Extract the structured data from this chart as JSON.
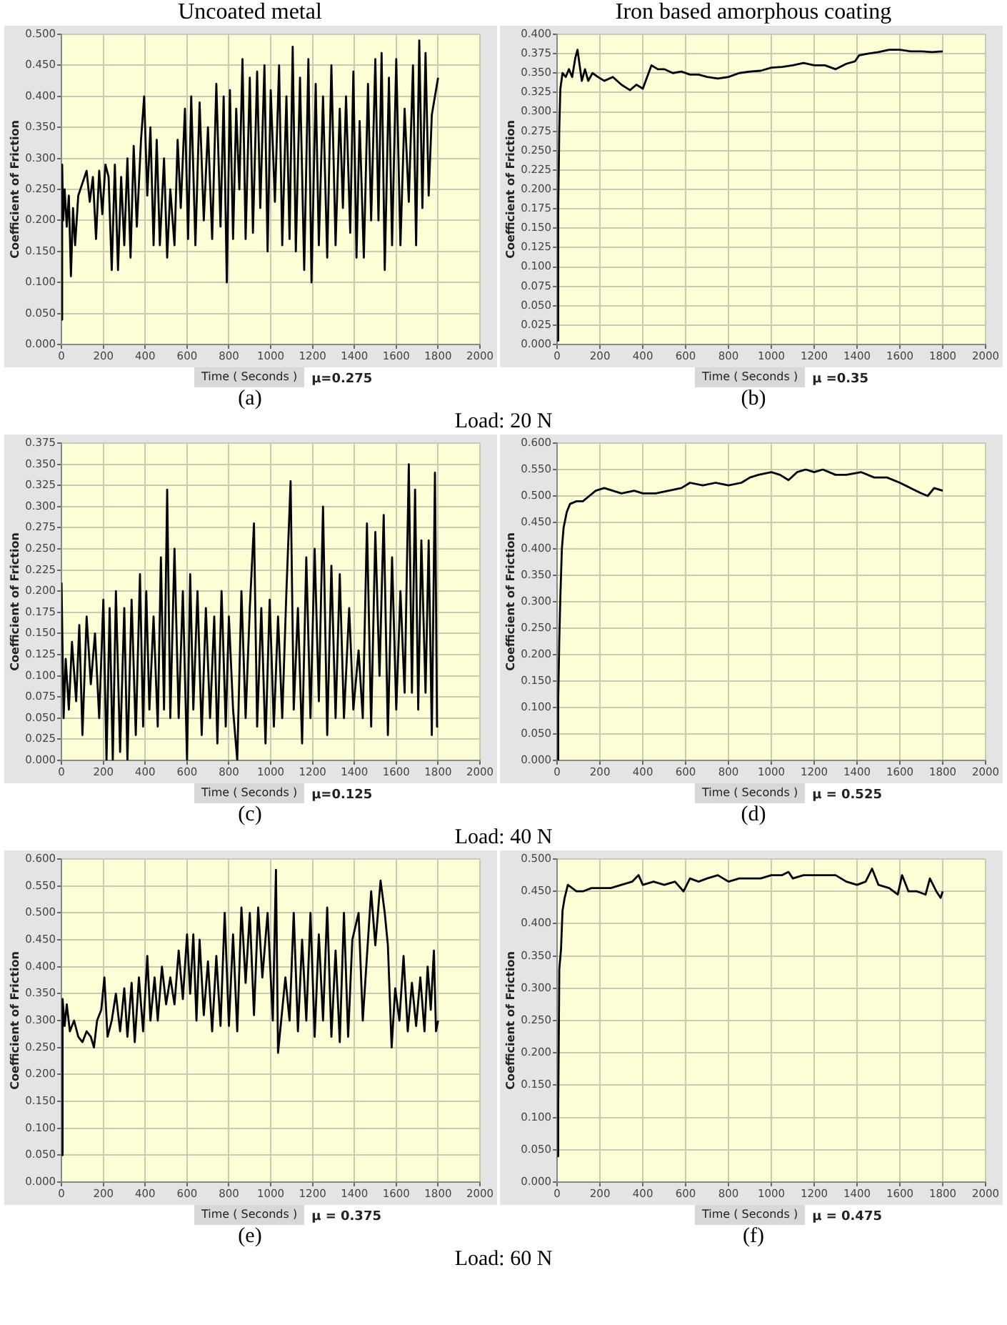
{
  "chart_data": [
    {
      "type": "line",
      "title": "Uncoated metal",
      "xlabel": "Time ( Seconds )",
      "ylabel": "Coefficient of Friction",
      "annotations": [
        "μ=0.275",
        "(a)",
        "Load: 20 N"
      ],
      "xlim": [
        0,
        2000
      ],
      "xticks": [
        0,
        200,
        400,
        600,
        800,
        1000,
        1200,
        1400,
        1600,
        1800,
        2000
      ],
      "ylim": [
        0,
        0.5
      ],
      "yticks": [
        {
          "value": 0,
          "label": "0.000"
        },
        {
          "value": 0.05,
          "label": "0.050"
        },
        {
          "value": 0.1,
          "label": "0.100"
        },
        {
          "value": 0.15,
          "label": "0.150"
        },
        {
          "value": 0.2,
          "label": "0.200"
        },
        {
          "value": 0.25,
          "label": "0.250"
        },
        {
          "value": 0.3,
          "label": "0.300"
        },
        {
          "value": 0.35,
          "label": "0.350"
        },
        {
          "value": 0.4,
          "label": "0.400"
        },
        {
          "value": 0.45,
          "label": "0.450"
        },
        {
          "value": 0.5,
          "label": "0.500"
        }
      ],
      "grid": true,
      "legend": false,
      "marker": "none",
      "line_style": "solid",
      "series": [
        {
          "color": "#000000",
          "x": [
            0,
            3,
            8,
            15,
            25,
            35,
            45,
            55,
            65,
            80,
            100,
            120,
            135,
            150,
            165,
            180,
            195,
            210,
            225,
            240,
            255,
            270,
            285,
            300,
            315,
            330,
            345,
            360,
            380,
            395,
            410,
            425,
            440,
            455,
            470,
            490,
            505,
            520,
            540,
            555,
            570,
            590,
            605,
            620,
            640,
            660,
            680,
            700,
            720,
            740,
            760,
            775,
            790,
            805,
            820,
            835,
            850,
            865,
            880,
            900,
            915,
            935,
            950,
            970,
            985,
            1000,
            1020,
            1040,
            1055,
            1075,
            1090,
            1105,
            1120,
            1140,
            1160,
            1180,
            1195,
            1215,
            1230,
            1250,
            1270,
            1290,
            1310,
            1330,
            1345,
            1360,
            1380,
            1395,
            1410,
            1425,
            1445,
            1465,
            1480,
            1500,
            1515,
            1530,
            1545,
            1565,
            1580,
            1600,
            1620,
            1640,
            1660,
            1680,
            1695,
            1710,
            1725,
            1740,
            1755,
            1770,
            1785,
            1800
          ],
          "values": [
            0.04,
            0.29,
            0.2,
            0.25,
            0.19,
            0.24,
            0.11,
            0.22,
            0.16,
            0.24,
            0.26,
            0.28,
            0.23,
            0.27,
            0.17,
            0.28,
            0.21,
            0.29,
            0.27,
            0.12,
            0.29,
            0.12,
            0.27,
            0.16,
            0.3,
            0.14,
            0.32,
            0.19,
            0.33,
            0.4,
            0.24,
            0.35,
            0.16,
            0.33,
            0.16,
            0.3,
            0.14,
            0.25,
            0.16,
            0.33,
            0.22,
            0.38,
            0.17,
            0.4,
            0.16,
            0.39,
            0.2,
            0.35,
            0.17,
            0.42,
            0.19,
            0.4,
            0.1,
            0.41,
            0.17,
            0.38,
            0.25,
            0.46,
            0.17,
            0.43,
            0.18,
            0.44,
            0.22,
            0.45,
            0.15,
            0.41,
            0.23,
            0.45,
            0.16,
            0.4,
            0.17,
            0.48,
            0.15,
            0.43,
            0.12,
            0.46,
            0.1,
            0.42,
            0.16,
            0.4,
            0.14,
            0.45,
            0.16,
            0.38,
            0.22,
            0.4,
            0.18,
            0.44,
            0.14,
            0.36,
            0.14,
            0.42,
            0.2,
            0.46,
            0.2,
            0.47,
            0.12,
            0.43,
            0.16,
            0.46,
            0.16,
            0.38,
            0.23,
            0.45,
            0.16,
            0.49,
            0.22,
            0.47,
            0.24,
            0.37,
            0.4,
            0.43
          ]
        }
      ]
    },
    {
      "type": "line",
      "title": "Iron based amorphous coating",
      "xlabel": "Time ( Seconds )",
      "ylabel": "Coefficient of Friction",
      "annotations": [
        "μ =0.35",
        "(b)"
      ],
      "xlim": [
        0,
        2000
      ],
      "xticks": [
        0,
        200,
        400,
        600,
        800,
        1000,
        1200,
        1400,
        1600,
        1800,
        2000
      ],
      "ylim": [
        0,
        0.4
      ],
      "yticks": [
        {
          "value": 0,
          "label": "0.000"
        },
        {
          "value": 0.025,
          "label": "0.025"
        },
        {
          "value": 0.05,
          "label": "0.050"
        },
        {
          "value": 0.075,
          "label": "0.075"
        },
        {
          "value": 0.1,
          "label": "0.100"
        },
        {
          "value": 0.125,
          "label": "0.125"
        },
        {
          "value": 0.15,
          "label": "0.150"
        },
        {
          "value": 0.175,
          "label": "0.175"
        },
        {
          "value": 0.2,
          "label": "0.200"
        },
        {
          "value": 0.225,
          "label": "0.225"
        },
        {
          "value": 0.25,
          "label": "0.250"
        },
        {
          "value": 0.275,
          "label": "0.275"
        },
        {
          "value": 0.3,
          "label": "0.300"
        },
        {
          "value": 0.325,
          "label": "0.325"
        },
        {
          "value": 0.35,
          "label": "0.350"
        },
        {
          "value": 0.375,
          "label": "0.375"
        },
        {
          "value": 0.4,
          "label": "0.400"
        }
      ],
      "grid": true,
      "legend": false,
      "marker": "none",
      "line_style": "solid",
      "series": [
        {
          "color": "#000000",
          "x": [
            0,
            5,
            10,
            15,
            25,
            40,
            55,
            70,
            85,
            95,
            105,
            115,
            130,
            145,
            165,
            190,
            220,
            260,
            300,
            340,
            370,
            400,
            420,
            440,
            470,
            500,
            540,
            580,
            620,
            660,
            700,
            750,
            800,
            850,
            900,
            950,
            1000,
            1050,
            1100,
            1150,
            1200,
            1250,
            1300,
            1350,
            1390,
            1410,
            1450,
            1500,
            1550,
            1600,
            1650,
            1700,
            1750,
            1800
          ],
          "values": [
            0.005,
            0.18,
            0.28,
            0.33,
            0.35,
            0.345,
            0.355,
            0.345,
            0.37,
            0.38,
            0.36,
            0.34,
            0.355,
            0.34,
            0.35,
            0.345,
            0.34,
            0.345,
            0.335,
            0.328,
            0.335,
            0.33,
            0.345,
            0.36,
            0.355,
            0.355,
            0.35,
            0.352,
            0.348,
            0.348,
            0.345,
            0.343,
            0.345,
            0.35,
            0.352,
            0.353,
            0.357,
            0.358,
            0.36,
            0.363,
            0.36,
            0.36,
            0.355,
            0.362,
            0.365,
            0.373,
            0.375,
            0.377,
            0.38,
            0.38,
            0.378,
            0.378,
            0.377,
            0.378
          ]
        }
      ]
    },
    {
      "type": "line",
      "xlabel": "Time ( Seconds )",
      "ylabel": "Coefficient of Friction",
      "annotations": [
        "μ=0.125",
        "(c)",
        "Load: 40 N"
      ],
      "xlim": [
        0,
        2000
      ],
      "xticks": [
        0,
        200,
        400,
        600,
        800,
        1000,
        1200,
        1400,
        1600,
        1800,
        2000
      ],
      "ylim": [
        0,
        0.375
      ],
      "yticks": [
        {
          "value": 0,
          "label": "0.000"
        },
        {
          "value": 0.025,
          "label": "0.025"
        },
        {
          "value": 0.05,
          "label": "0.050"
        },
        {
          "value": 0.075,
          "label": "0.075"
        },
        {
          "value": 0.1,
          "label": "0.100"
        },
        {
          "value": 0.125,
          "label": "0.125"
        },
        {
          "value": 0.15,
          "label": "0.150"
        },
        {
          "value": 0.175,
          "label": "0.175"
        },
        {
          "value": 0.2,
          "label": "0.200"
        },
        {
          "value": 0.225,
          "label": "0.225"
        },
        {
          "value": 0.25,
          "label": "0.250"
        },
        {
          "value": 0.275,
          "label": "0.275"
        },
        {
          "value": 0.3,
          "label": "0.300"
        },
        {
          "value": 0.325,
          "label": "0.325"
        },
        {
          "value": 0.35,
          "label": "0.350"
        },
        {
          "value": 0.375,
          "label": "0.375"
        }
      ],
      "grid": true,
      "legend": false,
      "marker": "none",
      "line_style": "solid",
      "series": [
        {
          "color": "#000000",
          "x": [
            0,
            10,
            20,
            35,
            50,
            70,
            85,
            100,
            120,
            140,
            160,
            180,
            200,
            215,
            230,
            245,
            260,
            280,
            300,
            315,
            335,
            355,
            375,
            390,
            405,
            420,
            440,
            460,
            475,
            490,
            505,
            520,
            540,
            560,
            580,
            600,
            615,
            630,
            650,
            670,
            690,
            710,
            730,
            745,
            765,
            785,
            800,
            820,
            840,
            860,
            880,
            900,
            920,
            935,
            955,
            975,
            995,
            1015,
            1035,
            1055,
            1075,
            1095,
            1110,
            1130,
            1150,
            1170,
            1190,
            1210,
            1230,
            1250,
            1270,
            1290,
            1310,
            1330,
            1350,
            1375,
            1395,
            1420,
            1440,
            1460,
            1480,
            1500,
            1520,
            1540,
            1560,
            1580,
            1600,
            1620,
            1640,
            1660,
            1675,
            1690,
            1705,
            1720,
            1740,
            1755,
            1770,
            1785,
            1795,
            1800
          ],
          "values": [
            0.21,
            0.05,
            0.12,
            0.06,
            0.14,
            0.07,
            0.16,
            0.03,
            0.17,
            0.09,
            0.15,
            0.05,
            0.19,
            0.0,
            0.18,
            0.0,
            0.2,
            0.01,
            0.18,
            0.0,
            0.19,
            0.03,
            0.22,
            0.04,
            0.2,
            0.06,
            0.17,
            0.04,
            0.24,
            0.06,
            0.32,
            0.05,
            0.25,
            0.05,
            0.2,
            0.0,
            0.22,
            0.06,
            0.2,
            0.03,
            0.18,
            0.05,
            0.17,
            0.02,
            0.2,
            0.04,
            0.17,
            0.06,
            0.0,
            0.2,
            0.05,
            0.18,
            0.28,
            0.04,
            0.18,
            0.02,
            0.19,
            0.04,
            0.17,
            0.05,
            0.2,
            0.33,
            0.06,
            0.18,
            0.02,
            0.24,
            0.05,
            0.25,
            0.07,
            0.3,
            0.03,
            0.23,
            0.05,
            0.22,
            0.05,
            0.18,
            0.06,
            0.13,
            0.05,
            0.28,
            0.04,
            0.27,
            0.1,
            0.29,
            0.03,
            0.24,
            0.06,
            0.2,
            0.08,
            0.35,
            0.08,
            0.32,
            0.06,
            0.26,
            0.08,
            0.26,
            0.03,
            0.34,
            0.04,
            0.04
          ]
        }
      ]
    },
    {
      "type": "line",
      "xlabel": "Time ( Seconds )",
      "ylabel": "Coefficient of Friction",
      "annotations": [
        "μ = 0.525",
        "(d)"
      ],
      "xlim": [
        0,
        2000
      ],
      "xticks": [
        0,
        200,
        400,
        600,
        800,
        1000,
        1200,
        1400,
        1600,
        1800,
        2000
      ],
      "ylim": [
        0,
        0.6
      ],
      "yticks": [
        {
          "value": 0,
          "label": "0.000"
        },
        {
          "value": 0.05,
          "label": "0.050"
        },
        {
          "value": 0.1,
          "label": "0.100"
        },
        {
          "value": 0.15,
          "label": "0.150"
        },
        {
          "value": 0.2,
          "label": "0.200"
        },
        {
          "value": 0.25,
          "label": "0.250"
        },
        {
          "value": 0.3,
          "label": "0.300"
        },
        {
          "value": 0.35,
          "label": "0.350"
        },
        {
          "value": 0.4,
          "label": "0.400"
        },
        {
          "value": 0.45,
          "label": "0.450"
        },
        {
          "value": 0.5,
          "label": "0.500"
        },
        {
          "value": 0.55,
          "label": "0.550"
        },
        {
          "value": 0.6,
          "label": "0.600"
        }
      ],
      "grid": true,
      "legend": false,
      "marker": "none",
      "line_style": "solid",
      "series": [
        {
          "color": "#000000",
          "x": [
            0,
            5,
            10,
            15,
            22,
            30,
            45,
            60,
            90,
            120,
            150,
            180,
            220,
            260,
            300,
            360,
            400,
            460,
            520,
            580,
            620,
            680,
            740,
            800,
            860,
            900,
            940,
            1000,
            1040,
            1080,
            1120,
            1160,
            1200,
            1240,
            1300,
            1350,
            1420,
            1480,
            1540,
            1600,
            1650,
            1700,
            1730,
            1760,
            1800
          ],
          "values": [
            0.0,
            0.12,
            0.23,
            0.31,
            0.4,
            0.44,
            0.47,
            0.485,
            0.49,
            0.49,
            0.5,
            0.51,
            0.515,
            0.51,
            0.505,
            0.51,
            0.505,
            0.505,
            0.51,
            0.515,
            0.525,
            0.52,
            0.525,
            0.52,
            0.525,
            0.535,
            0.54,
            0.545,
            0.54,
            0.53,
            0.545,
            0.55,
            0.545,
            0.55,
            0.54,
            0.54,
            0.545,
            0.535,
            0.535,
            0.525,
            0.515,
            0.505,
            0.5,
            0.515,
            0.51
          ]
        }
      ]
    },
    {
      "type": "line",
      "xlabel": "Time ( Seconds )",
      "ylabel": "Coefficient of Friction",
      "annotations": [
        "μ = 0.375",
        "(e)",
        "Load: 60 N"
      ],
      "xlim": [
        0,
        2000
      ],
      "xticks": [
        0,
        200,
        400,
        600,
        800,
        1000,
        1200,
        1400,
        1600,
        1800,
        2000
      ],
      "ylim": [
        0,
        0.6
      ],
      "yticks": [
        {
          "value": 0,
          "label": "0.000"
        },
        {
          "value": 0.05,
          "label": "0.050"
        },
        {
          "value": 0.1,
          "label": "0.100"
        },
        {
          "value": 0.15,
          "label": "0.150"
        },
        {
          "value": 0.2,
          "label": "0.200"
        },
        {
          "value": 0.25,
          "label": "0.250"
        },
        {
          "value": 0.3,
          "label": "0.300"
        },
        {
          "value": 0.35,
          "label": "0.350"
        },
        {
          "value": 0.4,
          "label": "0.400"
        },
        {
          "value": 0.45,
          "label": "0.450"
        },
        {
          "value": 0.5,
          "label": "0.500"
        },
        {
          "value": 0.55,
          "label": "0.550"
        },
        {
          "value": 0.6,
          "label": "0.600"
        }
      ],
      "grid": true,
      "legend": false,
      "marker": "none",
      "line_style": "solid",
      "series": [
        {
          "color": "#000000",
          "x": [
            0,
            5,
            15,
            25,
            40,
            60,
            80,
            100,
            120,
            140,
            155,
            170,
            190,
            205,
            220,
            240,
            260,
            280,
            300,
            315,
            335,
            350,
            370,
            390,
            410,
            425,
            445,
            460,
            480,
            500,
            520,
            540,
            560,
            580,
            600,
            615,
            630,
            645,
            660,
            680,
            700,
            720,
            740,
            760,
            780,
            800,
            820,
            840,
            860,
            880,
            900,
            920,
            940,
            960,
            985,
            1010,
            1025,
            1035,
            1050,
            1070,
            1090,
            1110,
            1130,
            1150,
            1170,
            1190,
            1210,
            1230,
            1250,
            1270,
            1290,
            1310,
            1330,
            1350,
            1370,
            1390,
            1420,
            1440,
            1480,
            1500,
            1525,
            1545,
            1560,
            1578,
            1595,
            1615,
            1635,
            1655,
            1675,
            1695,
            1715,
            1735,
            1750,
            1765,
            1780,
            1790,
            1800
          ],
          "values": [
            0.05,
            0.34,
            0.29,
            0.33,
            0.28,
            0.3,
            0.27,
            0.26,
            0.28,
            0.27,
            0.25,
            0.3,
            0.32,
            0.38,
            0.27,
            0.3,
            0.35,
            0.28,
            0.36,
            0.27,
            0.37,
            0.26,
            0.38,
            0.28,
            0.42,
            0.3,
            0.38,
            0.3,
            0.4,
            0.33,
            0.38,
            0.33,
            0.43,
            0.34,
            0.46,
            0.35,
            0.46,
            0.3,
            0.45,
            0.31,
            0.41,
            0.28,
            0.42,
            0.29,
            0.5,
            0.29,
            0.46,
            0.28,
            0.51,
            0.37,
            0.5,
            0.31,
            0.51,
            0.38,
            0.5,
            0.3,
            0.58,
            0.24,
            0.3,
            0.38,
            0.3,
            0.5,
            0.28,
            0.45,
            0.3,
            0.5,
            0.27,
            0.46,
            0.3,
            0.51,
            0.27,
            0.43,
            0.26,
            0.5,
            0.27,
            0.45,
            0.5,
            0.3,
            0.54,
            0.44,
            0.56,
            0.5,
            0.44,
            0.25,
            0.36,
            0.3,
            0.42,
            0.28,
            0.37,
            0.29,
            0.38,
            0.28,
            0.4,
            0.32,
            0.43,
            0.28,
            0.3
          ]
        }
      ]
    },
    {
      "type": "line",
      "xlabel": "Time ( Seconds )",
      "ylabel": "Coefficient of Friction",
      "annotations": [
        "μ = 0.475",
        "(f)"
      ],
      "xlim": [
        0,
        2000
      ],
      "xticks": [
        0,
        200,
        400,
        600,
        800,
        1000,
        1200,
        1400,
        1600,
        1800,
        2000
      ],
      "ylim": [
        0,
        0.5
      ],
      "yticks": [
        {
          "value": 0,
          "label": "0.000"
        },
        {
          "value": 0.05,
          "label": "0.050"
        },
        {
          "value": 0.1,
          "label": "0.100"
        },
        {
          "value": 0.15,
          "label": "0.150"
        },
        {
          "value": 0.2,
          "label": "0.200"
        },
        {
          "value": 0.25,
          "label": "0.250"
        },
        {
          "value": 0.3,
          "label": "0.300"
        },
        {
          "value": 0.35,
          "label": "0.350"
        },
        {
          "value": 0.4,
          "label": "0.400"
        },
        {
          "value": 0.45,
          "label": "0.450"
        },
        {
          "value": 0.5,
          "label": "0.500"
        }
      ],
      "grid": true,
      "legend": false,
      "marker": "none",
      "line_style": "solid",
      "series": [
        {
          "color": "#000000",
          "x": [
            0,
            5,
            10,
            18,
            25,
            35,
            50,
            70,
            90,
            120,
            160,
            200,
            250,
            300,
            350,
            380,
            400,
            450,
            500,
            550,
            590,
            620,
            660,
            700,
            750,
            800,
            850,
            900,
            950,
            1000,
            1050,
            1080,
            1100,
            1150,
            1200,
            1250,
            1300,
            1350,
            1400,
            1440,
            1470,
            1500,
            1550,
            1590,
            1610,
            1640,
            1680,
            1720,
            1740,
            1770,
            1790,
            1800
          ],
          "values": [
            0.04,
            0.12,
            0.33,
            0.36,
            0.42,
            0.44,
            0.46,
            0.455,
            0.45,
            0.45,
            0.455,
            0.455,
            0.455,
            0.46,
            0.465,
            0.475,
            0.46,
            0.465,
            0.46,
            0.465,
            0.45,
            0.47,
            0.465,
            0.47,
            0.475,
            0.465,
            0.47,
            0.47,
            0.47,
            0.475,
            0.475,
            0.48,
            0.47,
            0.475,
            0.475,
            0.475,
            0.475,
            0.465,
            0.46,
            0.465,
            0.485,
            0.46,
            0.455,
            0.445,
            0.475,
            0.45,
            0.45,
            0.445,
            0.47,
            0.45,
            0.44,
            0.45
          ]
        }
      ]
    }
  ]
}
